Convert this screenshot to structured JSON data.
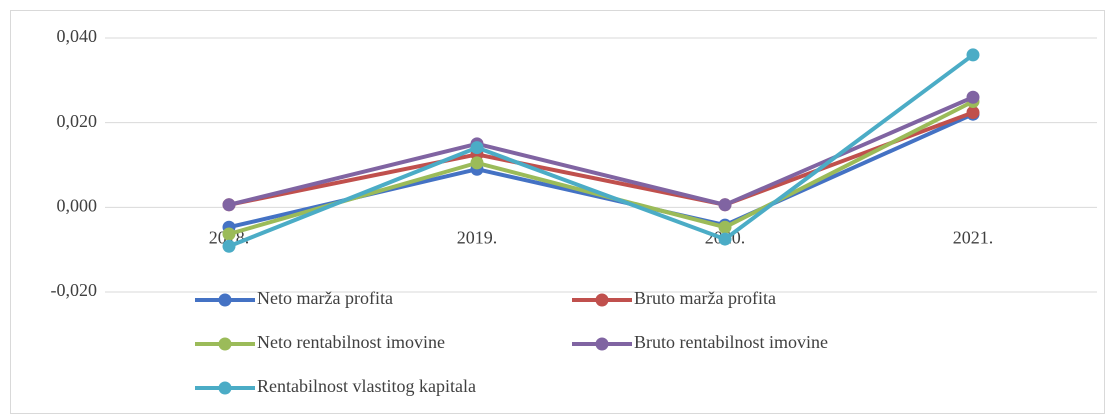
{
  "chart_data": {
    "type": "line",
    "categories": [
      "2018.",
      "2019.",
      "2020.",
      "2021."
    ],
    "ylim": [
      -0.02,
      0.04
    ],
    "yticks": [
      {
        "value": -0.02,
        "label": "-0,020"
      },
      {
        "value": 0,
        "label": "0,000"
      },
      {
        "value": 0.02,
        "label": "0,020"
      },
      {
        "value": 0.04,
        "label": "0,040"
      }
    ],
    "grid": true,
    "series": [
      {
        "name": "Neto marža profita",
        "color": "#4472c4",
        "values": [
          -0.0047,
          0.009,
          -0.0042,
          0.022
        ]
      },
      {
        "name": "Bruto marža profita",
        "color": "#c0504d",
        "values": [
          0.0006,
          0.0125,
          0.0006,
          0.0224
        ]
      },
      {
        "name": "Neto rentabilnost imovine",
        "color": "#9bbb59",
        "values": [
          -0.0063,
          0.0105,
          -0.0047,
          0.025
        ]
      },
      {
        "name": "Bruto rentabilnost imovine",
        "color": "#8064a2",
        "values": [
          0.0006,
          0.015,
          0.0006,
          0.026
        ]
      },
      {
        "name": "Rentabilnost vlastitog kapitala",
        "color": "#4bacc6",
        "values": [
          -0.0092,
          0.0141,
          -0.0075,
          0.036
        ]
      }
    ]
  }
}
